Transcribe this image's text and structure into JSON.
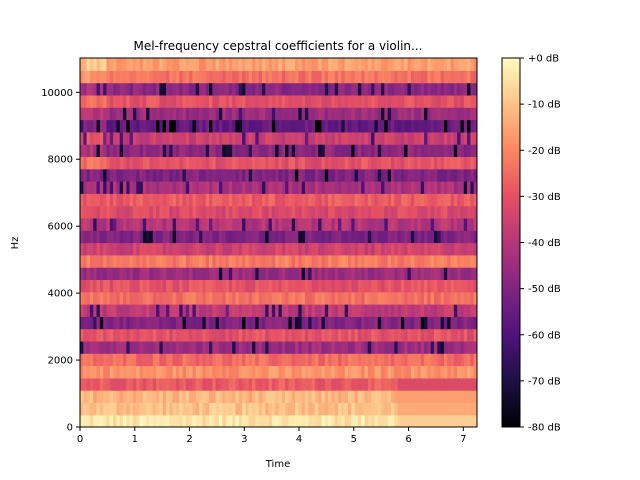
{
  "chart_data": {
    "type": "heatmap",
    "title": "Mel-frequency cepstral coefficients for a violin...",
    "xlabel": "Time",
    "ylabel": "Hz",
    "xlim": [
      0,
      7.25
    ],
    "ylim": [
      0,
      11025
    ],
    "x_ticks": [
      0,
      1,
      2,
      3,
      4,
      5,
      6,
      7
    ],
    "x_tick_labels": [
      "0",
      "1",
      "2",
      "3",
      "4",
      "5",
      "6",
      "7"
    ],
    "y_ticks": [
      0,
      2000,
      4000,
      6000,
      8000,
      10000
    ],
    "y_tick_labels": [
      "0",
      "2000",
      "4000",
      "6000",
      "8000",
      "10000"
    ],
    "n_bands": 30,
    "band_levels_db": [
      -4,
      -10,
      -12,
      -28,
      -18,
      -25,
      -45,
      -30,
      -50,
      -38,
      -24,
      -30,
      -45,
      -22,
      -35,
      -50,
      -40,
      -32,
      -28,
      -42,
      -50,
      -30,
      -48,
      -36,
      -55,
      -45,
      -30,
      -48,
      -24,
      -16
    ],
    "colorbar": {
      "ticks_db": [
        0,
        -10,
        -20,
        -30,
        -40,
        -50,
        -60,
        -70,
        -80
      ],
      "tick_labels": [
        "+0 dB",
        "-10 dB",
        "-20 dB",
        "-30 dB",
        "-40 dB",
        "-50 dB",
        "-60 dB",
        "-70 dB",
        "-80 dB"
      ],
      "range_db": [
        -80,
        0
      ],
      "colormap": "magma",
      "colormap_stops": [
        "#000004",
        "#1c1044",
        "#4f127b",
        "#812581",
        "#b5367a",
        "#e55064",
        "#fb8761",
        "#fec287",
        "#fcfdbf"
      ]
    },
    "grid": false
  }
}
